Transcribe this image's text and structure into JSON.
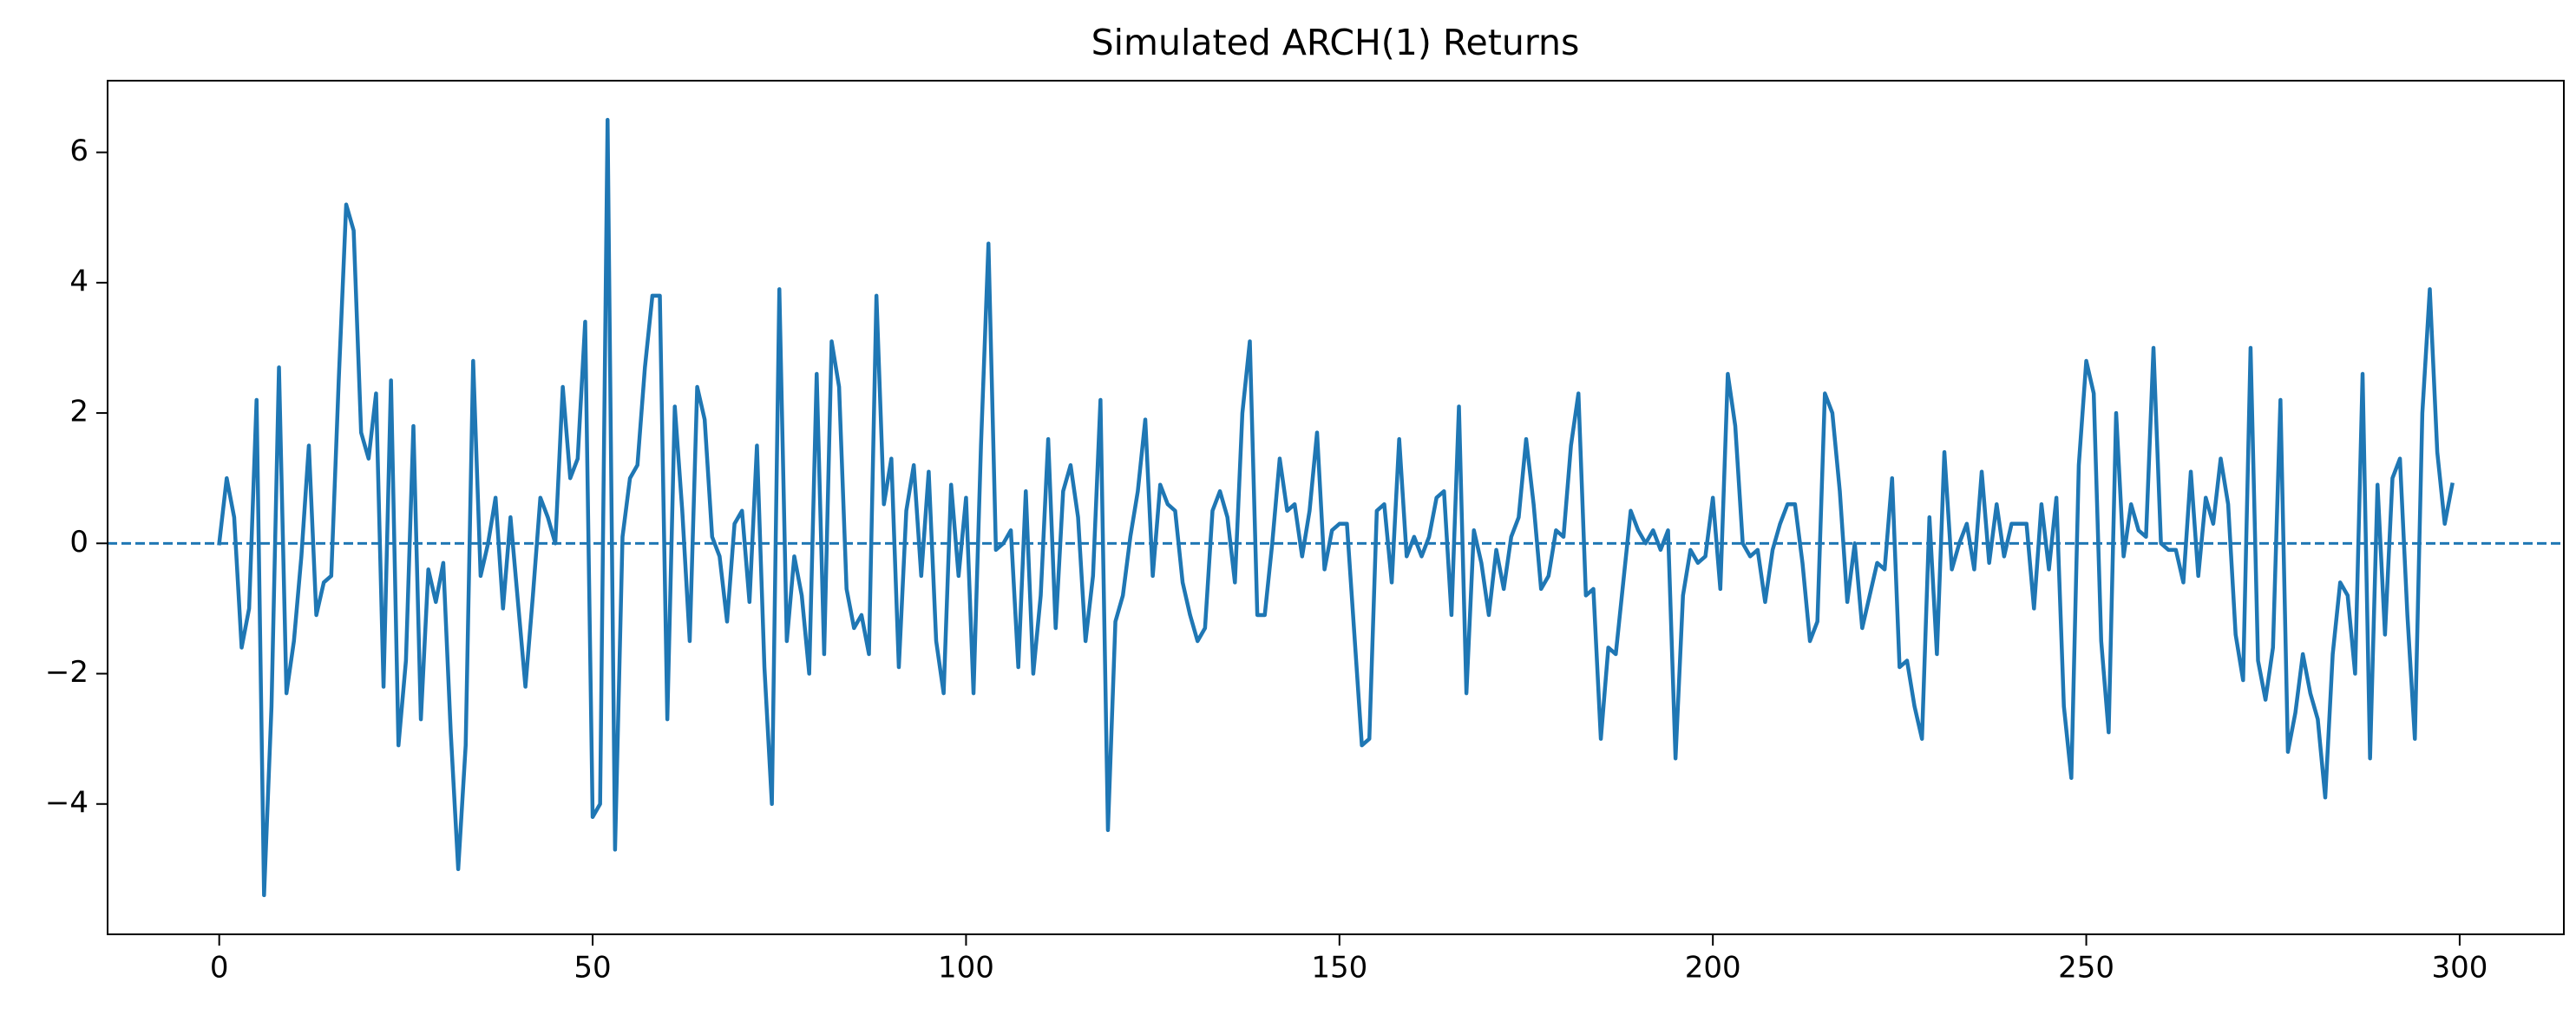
{
  "chart_data": {
    "type": "line",
    "title": "Simulated ARCH(1) Returns",
    "x": [
      0,
      1,
      2,
      3,
      4,
      5,
      6,
      7,
      8,
      9,
      10,
      11,
      12,
      13,
      14,
      15,
      16,
      17,
      18,
      19,
      20,
      21,
      22,
      23,
      24,
      25,
      26,
      27,
      28,
      29,
      30,
      31,
      32,
      33,
      34,
      35,
      36,
      37,
      38,
      39,
      40,
      41,
      42,
      43,
      44,
      45,
      46,
      47,
      48,
      49,
      50,
      51,
      52,
      53,
      54,
      55,
      56,
      57,
      58,
      59,
      60,
      61,
      62,
      63,
      64,
      65,
      66,
      67,
      68,
      69,
      70,
      71,
      72,
      73,
      74,
      75,
      76,
      77,
      78,
      79,
      80,
      81,
      82,
      83,
      84,
      85,
      86,
      87,
      88,
      89,
      90,
      91,
      92,
      93,
      94,
      95,
      96,
      97,
      98,
      99,
      100,
      101,
      102,
      103,
      104,
      105,
      106,
      107,
      108,
      109,
      110,
      111,
      112,
      113,
      114,
      115,
      116,
      117,
      118,
      119,
      120,
      121,
      122,
      123,
      124,
      125,
      126,
      127,
      128,
      129,
      130,
      131,
      132,
      133,
      134,
      135,
      136,
      137,
      138,
      139,
      140,
      141,
      142,
      143,
      144,
      145,
      146,
      147,
      148,
      149,
      150,
      151,
      152,
      153,
      154,
      155,
      156,
      157,
      158,
      159,
      160,
      161,
      162,
      163,
      164,
      165,
      166,
      167,
      168,
      169,
      170,
      171,
      172,
      173,
      174,
      175,
      176,
      177,
      178,
      179,
      180,
      181,
      182,
      183,
      184,
      185,
      186,
      187,
      188,
      189,
      190,
      191,
      192,
      193,
      194,
      195,
      196,
      197,
      198,
      199,
      200,
      201,
      202,
      203,
      204,
      205,
      206,
      207,
      208,
      209,
      210,
      211,
      212,
      213,
      214,
      215,
      216,
      217,
      218,
      219,
      220,
      221,
      222,
      223,
      224,
      225,
      226,
      227,
      228,
      229,
      230,
      231,
      232,
      233,
      234,
      235,
      236,
      237,
      238,
      239,
      240,
      241,
      242,
      243,
      244,
      245,
      246,
      247,
      248,
      249,
      250,
      251,
      252,
      253,
      254,
      255,
      256,
      257,
      258,
      259,
      260,
      261,
      262,
      263,
      264,
      265,
      266,
      267,
      268,
      269,
      270,
      271,
      272,
      273,
      274,
      275,
      276,
      277,
      278,
      279,
      280,
      281,
      282,
      283,
      284,
      285,
      286,
      287,
      288,
      289,
      290,
      291,
      292,
      293,
      294,
      295,
      296,
      297,
      298,
      299
    ],
    "series": [
      {
        "color": "#1f77b4",
        "values": [
          0,
          1.0,
          0.4,
          -1.6,
          -1.0,
          2.2,
          -5.4,
          -2.5,
          2.7,
          -2.3,
          -1.5,
          -0.2,
          1.5,
          -1.1,
          -0.6,
          -0.5,
          2.5,
          5.2,
          4.8,
          1.7,
          1.3,
          2.3,
          -2.2,
          2.5,
          -3.1,
          -1.8,
          1.8,
          -2.7,
          -0.4,
          -0.9,
          -0.3,
          -2.9,
          -5.0,
          -3.1,
          2.8,
          -0.5,
          0.0,
          0.7,
          -1.0,
          0.4,
          -0.9,
          -2.2,
          -0.8,
          0.7,
          0.4,
          0.0,
          2.4,
          1.0,
          1.3,
          3.4,
          -4.2,
          -4.0,
          6.5,
          -4.7,
          0.1,
          1.0,
          1.2,
          2.7,
          3.8,
          3.8,
          -2.7,
          2.1,
          0.5,
          -1.5,
          2.4,
          1.9,
          0.1,
          -0.2,
          -1.2,
          0.3,
          0.5,
          -0.9,
          1.5,
          -1.9,
          -4.0,
          3.9,
          -1.5,
          -0.2,
          -0.8,
          -2.0,
          2.6,
          -1.7,
          3.1,
          2.4,
          -0.7,
          -1.3,
          -1.1,
          -1.7,
          3.8,
          0.6,
          1.3,
          -1.9,
          0.5,
          1.2,
          -0.5,
          1.1,
          -1.5,
          -2.3,
          0.9,
          -0.5,
          0.7,
          -2.3,
          1.5,
          4.6,
          -0.1,
          0.0,
          0.2,
          -1.9,
          0.8,
          -2.0,
          -0.8,
          1.6,
          -1.3,
          0.8,
          1.2,
          0.4,
          -1.5,
          -0.5,
          2.2,
          -4.4,
          -1.2,
          -0.8,
          0.1,
          0.8,
          1.9,
          -0.5,
          0.9,
          0.6,
          0.5,
          -0.6,
          -1.1,
          -1.5,
          -1.3,
          0.5,
          0.8,
          0.4,
          -0.6,
          2.0,
          3.1,
          -1.1,
          -1.1,
          0.0,
          1.3,
          0.5,
          0.6,
          -0.2,
          0.5,
          1.7,
          -0.4,
          0.2,
          0.3,
          0.3,
          -1.4,
          -3.1,
          -3.0,
          0.5,
          0.6,
          -0.6,
          1.6,
          -0.2,
          0.1,
          -0.2,
          0.1,
          0.7,
          0.8,
          -1.1,
          2.1,
          -2.3,
          0.2,
          -0.3,
          -1.1,
          -0.1,
          -0.7,
          0.1,
          0.4,
          1.6,
          0.6,
          -0.7,
          -0.5,
          0.2,
          0.1,
          1.5,
          2.3,
          -0.8,
          -0.7,
          -3.0,
          -1.6,
          -1.7,
          -0.6,
          0.5,
          0.2,
          0.0,
          0.2,
          -0.1,
          0.2,
          -3.3,
          -0.8,
          -0.1,
          -0.3,
          -0.2,
          0.7,
          -0.7,
          2.6,
          1.8,
          0.0,
          -0.2,
          -0.1,
          -0.9,
          -0.1,
          0.3,
          0.6,
          0.6,
          -0.3,
          -1.5,
          -1.2,
          2.3,
          2.0,
          0.8,
          -0.9,
          0.0,
          -1.3,
          -0.8,
          -0.3,
          -0.4,
          1.0,
          -1.9,
          -1.8,
          -2.5,
          -3.0,
          0.4,
          -1.7,
          1.4,
          -0.4,
          0.0,
          0.3,
          -0.4,
          1.1,
          -0.3,
          0.6,
          -0.2,
          0.3,
          0.3,
          0.3,
          -1.0,
          0.6,
          -0.4,
          0.7,
          -2.5,
          -3.6,
          1.2,
          2.8,
          2.3,
          -1.5,
          -2.9,
          2.0,
          -0.2,
          0.6,
          0.2,
          0.1,
          3.0,
          0.0,
          -0.1,
          -0.1,
          -0.6,
          1.1,
          -0.5,
          0.7,
          0.3,
          1.3,
          0.6,
          -1.4,
          -2.1,
          3.0,
          -1.8,
          -2.4,
          -1.6,
          2.2,
          -3.2,
          -2.6,
          -1.7,
          -2.3,
          -2.7,
          -3.9,
          -1.7,
          -0.6,
          -0.8,
          -2.0,
          2.6,
          -3.3,
          0.9,
          -1.4,
          1.0,
          1.3,
          -1.1,
          -3.0,
          2.0,
          3.9,
          1.4,
          0.3,
          0.9
        ]
      }
    ],
    "hline": {
      "y": 0,
      "color": "#1f77b4",
      "style": "dashed"
    },
    "xlim": [
      -14.95,
      313.95
    ],
    "xticks": [
      0,
      50,
      100,
      150,
      200,
      250,
      300
    ],
    "ylim": [
      -6.0,
      7.1
    ],
    "yticks": [
      {
        "value": -4,
        "label": "−4"
      },
      {
        "value": -2,
        "label": "−2"
      },
      0,
      2,
      4,
      6
    ],
    "grid": false
  }
}
